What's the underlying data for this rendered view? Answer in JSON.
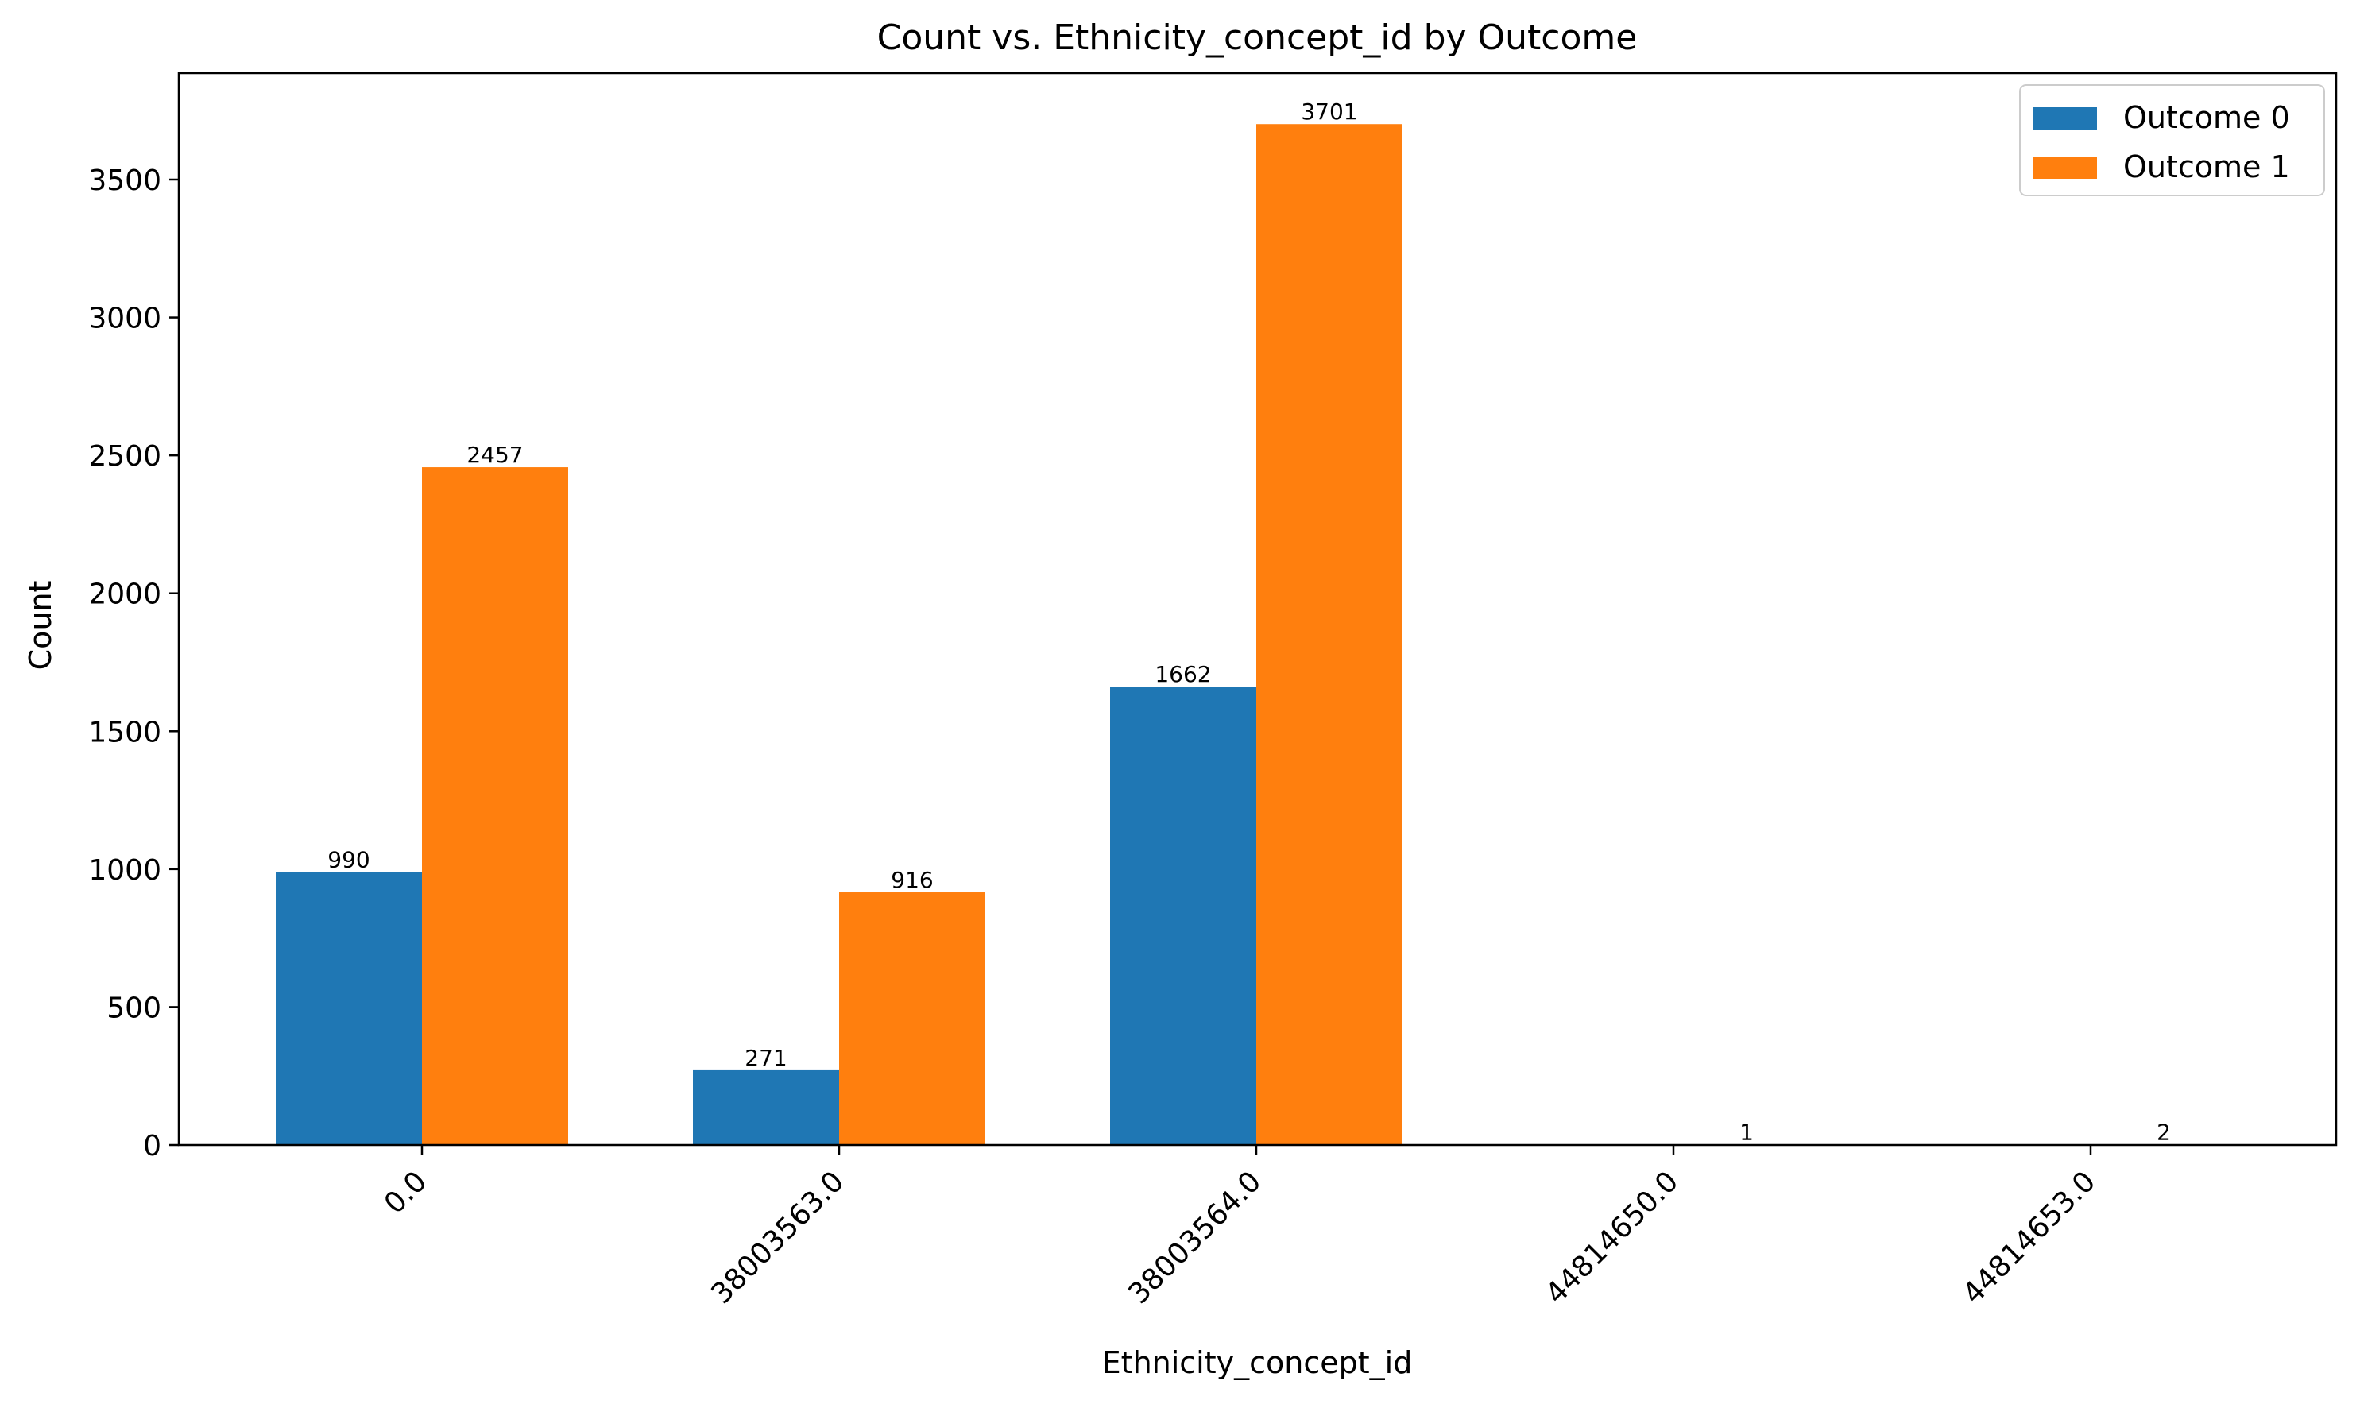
{
  "chart_data": {
    "type": "bar",
    "title": "Count vs. Ethnicity_concept_id by Outcome",
    "xlabel": "Ethnicity_concept_id",
    "ylabel": "Count",
    "categories": [
      "0.0",
      "38003563.0",
      "38003564.0",
      "44814650.0",
      "44814653.0"
    ],
    "series": [
      {
        "name": "Outcome 0",
        "color": "#1f77b4",
        "values": [
          990,
          271,
          1662,
          null,
          null
        ]
      },
      {
        "name": "Outcome 1",
        "color": "#ff7f0e",
        "values": [
          2457,
          916,
          3701,
          1,
          2
        ]
      }
    ],
    "ylim": [
      0,
      3886
    ],
    "yticks": [
      0,
      500,
      1000,
      1500,
      2000,
      2500,
      3000,
      3500
    ],
    "grid": false,
    "legend": "top-right",
    "data_labels": true
  }
}
